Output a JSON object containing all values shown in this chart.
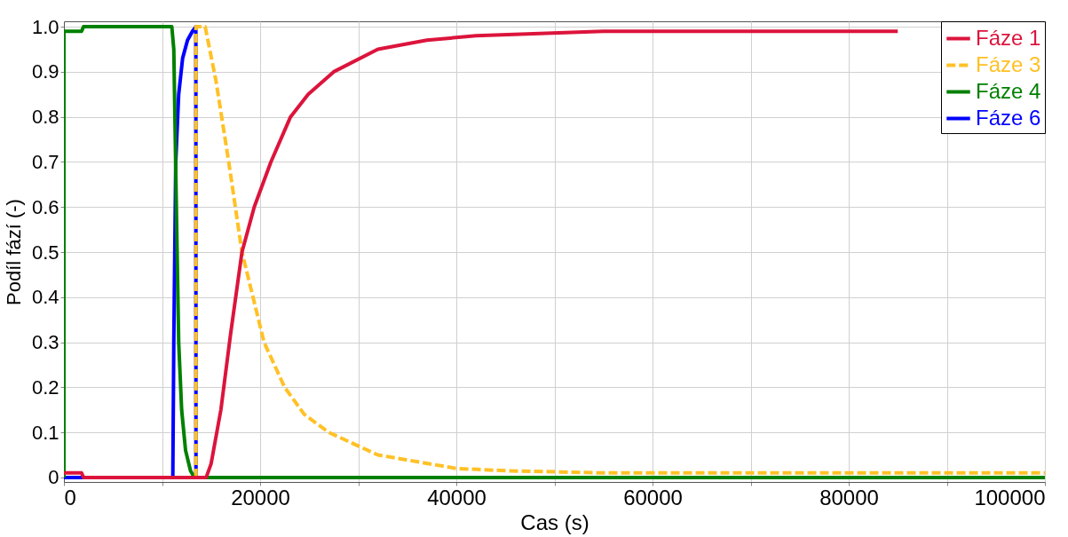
{
  "chart_data": {
    "type": "line",
    "xlabel": "Cas (s)",
    "ylabel": "Podíl fází (-)",
    "xlim": [
      0,
      100000
    ],
    "ylim": [
      -0.01,
      1.012
    ],
    "xticks": [
      0,
      {
        "value": 10000,
        "label": null
      },
      20000,
      {
        "value": 30000,
        "label": null
      },
      40000,
      {
        "value": 50000,
        "label": null
      },
      60000,
      {
        "value": 70000,
        "label": null
      },
      80000,
      {
        "value": 90000,
        "label": null
      },
      100000
    ],
    "yticks": [
      0,
      0.1,
      0.2,
      0.3,
      0.4,
      0.5,
      0.6,
      0.7,
      0.8,
      0.9,
      {
        "value": 1,
        "label": "1.0"
      }
    ],
    "grid": true,
    "legend": "top right",
    "series": [
      {
        "name": "Fáze 1",
        "color": "#dc143c",
        "line_style": "solid",
        "x": [
          0,
          1800,
          2000,
          14500,
          15000,
          16000,
          17000,
          18150,
          19400,
          21100,
          23100,
          24900,
          27500,
          32000,
          37000,
          42000,
          55000,
          85000
        ],
        "values": [
          0.01,
          0.01,
          0,
          0,
          0.03,
          0.15,
          0.32,
          0.5,
          0.6,
          0.7,
          0.8,
          0.85,
          0.9,
          0.95,
          0.97,
          0.98,
          0.99,
          0.99
        ]
      },
      {
        "name": "Fáze 3",
        "color": "#ffc125",
        "line_style": "dashed",
        "x": [
          13460,
          13460,
          14400,
          15500,
          16800,
          18150,
          20400,
          22500,
          24500,
          27000,
          32000,
          40000,
          45000,
          55000,
          100000
        ],
        "values": [
          0,
          1,
          1,
          0.88,
          0.7,
          0.5,
          0.3,
          0.2,
          0.14,
          0.1,
          0.05,
          0.02,
          0.015,
          0.01,
          0.01
        ]
      },
      {
        "name": "Fáze 4",
        "color": "#008000",
        "line_style": "solid",
        "x": [
          0,
          0,
          1800,
          2000,
          11000,
          11200,
          11500,
          11700,
          12000,
          12400,
          12900,
          13300,
          100000
        ],
        "values": [
          0,
          0.99,
          0.99,
          1,
          1,
          0.95,
          0.55,
          0.3,
          0.15,
          0.06,
          0.015,
          0,
          0
        ]
      },
      {
        "name": "Fáze 6",
        "color": "#0000ff",
        "line_style": "solid",
        "x": [
          0,
          11100,
          11200,
          11400,
          11700,
          12100,
          12600,
          13100,
          13450,
          13460
        ],
        "values": [
          0,
          0,
          0.3,
          0.7,
          0.85,
          0.93,
          0.97,
          0.99,
          1,
          0
        ]
      }
    ]
  }
}
